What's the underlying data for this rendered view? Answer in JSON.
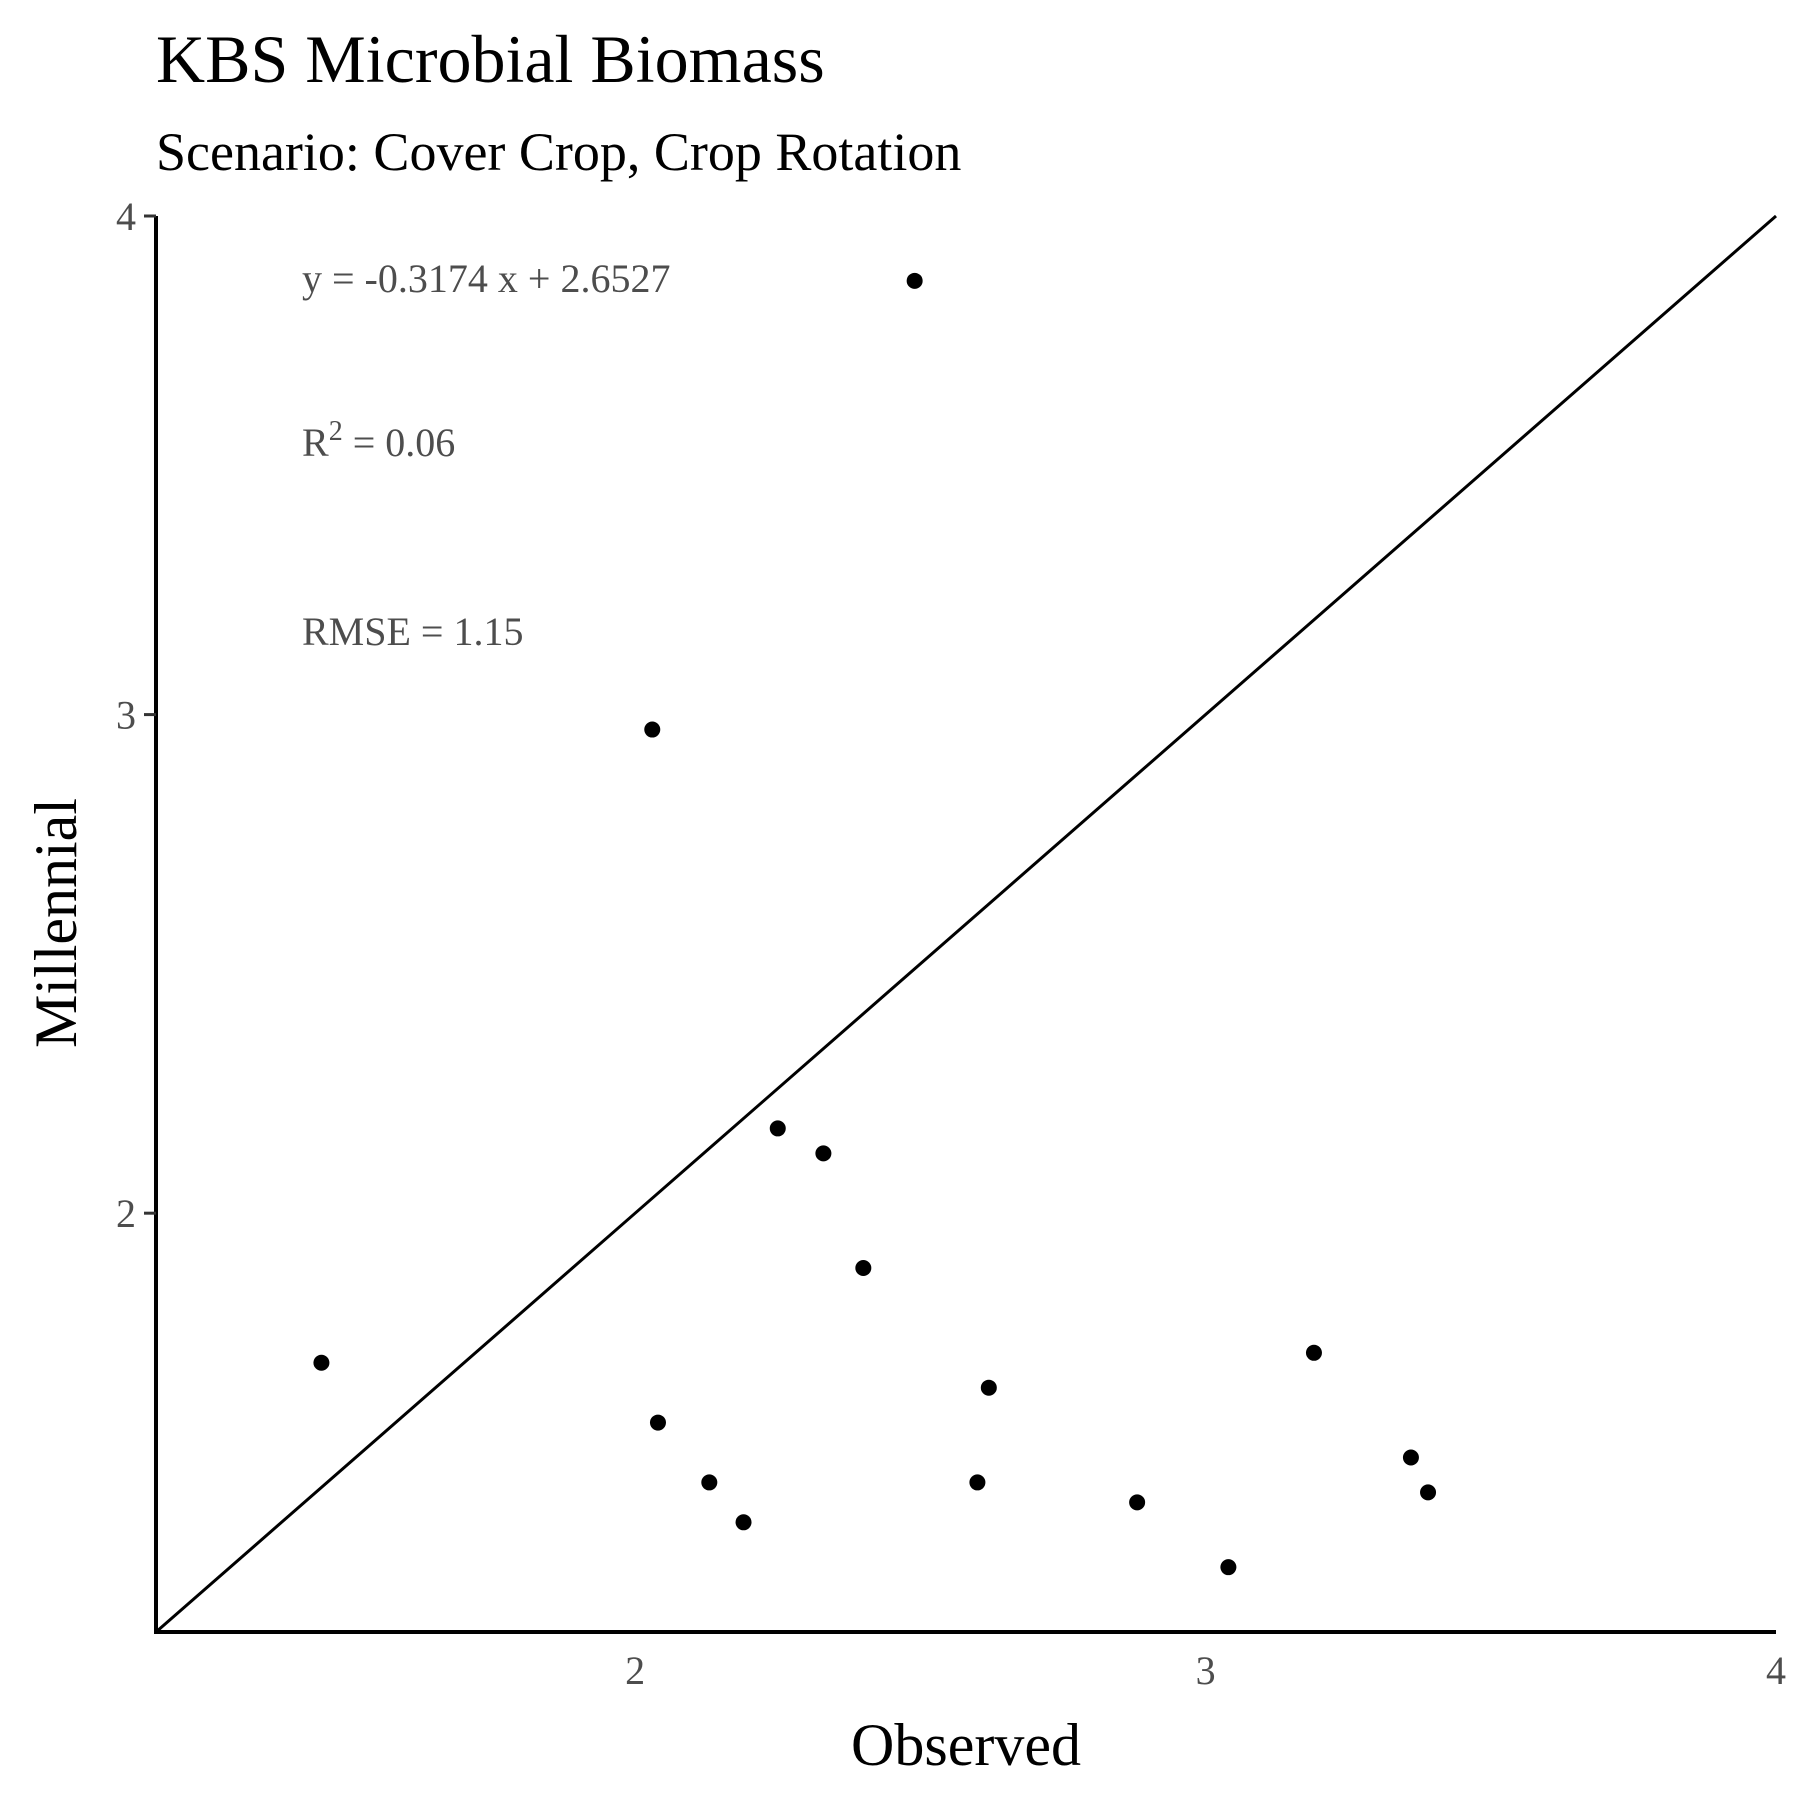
{
  "chart_data": {
    "type": "scatter",
    "title": "KBS Microbial Biomass",
    "subtitle": "Scenario: Cover Crop, Crop Rotation",
    "xlabel": "Observed",
    "ylabel": "Millennial",
    "xlim": [
      1.16,
      4.0
    ],
    "ylim": [
      1.16,
      4.0
    ],
    "x_ticks": [
      "2",
      "3",
      "4"
    ],
    "y_ticks": [
      "2",
      "3",
      "4"
    ],
    "grid": false,
    "reference_line": "1:1",
    "annotations": {
      "equation": "y = -0.3174 x + 2.6527",
      "r2_label": "R",
      "r2_sup": "2",
      "r2_value": " = 0.06",
      "rmse": "RMSE = 1.15"
    },
    "colors": {
      "points": "#000000",
      "line": "#000000",
      "annotation": "#4d4d4d"
    },
    "points": [
      {
        "x": 1.45,
        "y": 1.7
      },
      {
        "x": 2.03,
        "y": 2.97
      },
      {
        "x": 2.04,
        "y": 1.58
      },
      {
        "x": 2.13,
        "y": 1.46
      },
      {
        "x": 2.19,
        "y": 1.38
      },
      {
        "x": 2.25,
        "y": 2.17
      },
      {
        "x": 2.33,
        "y": 2.12
      },
      {
        "x": 2.4,
        "y": 1.89
      },
      {
        "x": 2.49,
        "y": 3.87
      },
      {
        "x": 2.6,
        "y": 1.46
      },
      {
        "x": 2.62,
        "y": 1.65
      },
      {
        "x": 2.88,
        "y": 1.42
      },
      {
        "x": 3.04,
        "y": 1.29
      },
      {
        "x": 3.19,
        "y": 1.72
      },
      {
        "x": 3.36,
        "y": 1.51
      },
      {
        "x": 3.39,
        "y": 1.44
      }
    ]
  }
}
